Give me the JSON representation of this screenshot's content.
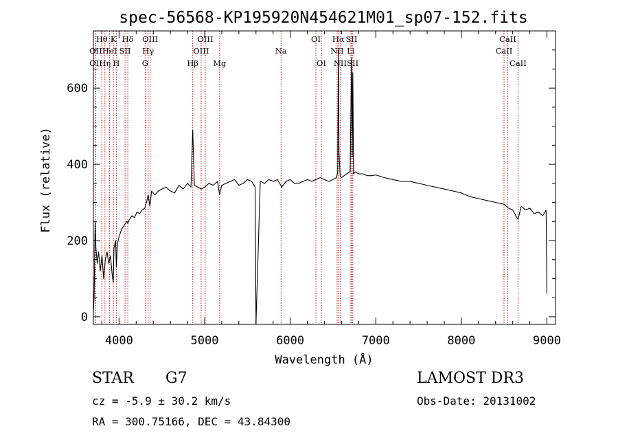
{
  "chart_data": {
    "type": "line",
    "title": "spec-56568-KP195920N454621M01_sp07-152.fits",
    "xlabel": "Wavelength (Å)",
    "ylabel": "Flux (relative)",
    "xlim": [
      3700,
      9100
    ],
    "ylim": [
      -20,
      750
    ],
    "xticks": [
      4000,
      5000,
      6000,
      7000,
      8000,
      9000
    ],
    "yticks": [
      0,
      200,
      400,
      600
    ],
    "series": [
      {
        "name": "spectrum",
        "x": [
          3700,
          3710,
          3720,
          3730,
          3745,
          3760,
          3780,
          3800,
          3820,
          3840,
          3860,
          3880,
          3900,
          3920,
          3933,
          3940,
          3960,
          3968,
          3980,
          4000,
          4030,
          4060,
          4090,
          4102,
          4120,
          4150,
          4180,
          4210,
          4240,
          4270,
          4300,
          4320,
          4340,
          4360,
          4380,
          4420,
          4460,
          4500,
          4550,
          4600,
          4650,
          4700,
          4750,
          4800,
          4840,
          4861,
          4880,
          4920,
          4960,
          5000,
          5050,
          5100,
          5150,
          5175,
          5200,
          5250,
          5300,
          5350,
          5400,
          5450,
          5500,
          5550,
          5590,
          5600,
          5650,
          5700,
          5750,
          5800,
          5850,
          5890,
          5900,
          5950,
          6000,
          6050,
          6100,
          6150,
          6200,
          6250,
          6300,
          6350,
          6400,
          6450,
          6500,
          6540,
          6555,
          6563,
          6570,
          6584,
          6600,
          6630,
          6660,
          6690,
          6700,
          6717,
          6725,
          6731,
          6740,
          6760,
          6800,
          6850,
          6900,
          6950,
          7000,
          7100,
          7200,
          7300,
          7400,
          7500,
          7600,
          7700,
          7800,
          7900,
          8000,
          8100,
          8200,
          8300,
          8400,
          8500,
          8550,
          8600,
          8662,
          8700,
          8750,
          8800,
          8850,
          8900,
          8950,
          8990,
          9000
        ],
        "y": [
          10,
          60,
          250,
          180,
          140,
          170,
          120,
          160,
          100,
          150,
          170,
          140,
          160,
          110,
          90,
          180,
          200,
          130,
          190,
          210,
          230,
          240,
          250,
          245,
          255,
          265,
          260,
          275,
          270,
          280,
          285,
          300,
          320,
          290,
          330,
          320,
          330,
          335,
          340,
          330,
          325,
          345,
          335,
          350,
          340,
          490,
          345,
          340,
          335,
          340,
          350,
          345,
          355,
          320,
          345,
          350,
          355,
          360,
          345,
          350,
          360,
          355,
          340,
          -20,
          355,
          350,
          360,
          355,
          360,
          345,
          340,
          355,
          360,
          350,
          350,
          355,
          360,
          355,
          360,
          365,
          360,
          355,
          360,
          365,
          380,
          700,
          430,
          370,
          365,
          370,
          375,
          380,
          380,
          680,
          420,
          640,
          375,
          380,
          375,
          375,
          370,
          370,
          372,
          365,
          360,
          355,
          355,
          350,
          345,
          340,
          335,
          330,
          325,
          315,
          310,
          305,
          300,
          295,
          285,
          280,
          255,
          290,
          280,
          285,
          270,
          275,
          265,
          280,
          60
        ]
      }
    ],
    "line_markers": [
      {
        "label": "OII",
        "x": 3727,
        "row": 2
      },
      {
        "label": "Hθ",
        "x": 3798,
        "row": 1
      },
      {
        "label": "OII",
        "x": 3727,
        "row": 3
      },
      {
        "label": "Hη",
        "x": 3835,
        "row": 3
      },
      {
        "label": "HeI",
        "x": 3889,
        "row": 2
      },
      {
        "label": "K",
        "x": 3934,
        "row": 1
      },
      {
        "label": "H",
        "x": 3968,
        "row": 3
      },
      {
        "label": "SII",
        "x": 4070,
        "row": 2
      },
      {
        "label": "Hδ",
        "x": 4102,
        "row": 1
      },
      {
        "label": "OIII",
        "x": 4363,
        "row": 1
      },
      {
        "label": "Hγ",
        "x": 4340,
        "row": 2
      },
      {
        "label": "G",
        "x": 4305,
        "row": 3
      },
      {
        "label": "Hβ",
        "x": 4861,
        "row": 3
      },
      {
        "label": "OIII",
        "x": 5007,
        "row": 1
      },
      {
        "label": "OIII",
        "x": 4959,
        "row": 2
      },
      {
        "label": "Mg",
        "x": 5175,
        "row": 3
      },
      {
        "label": "Na",
        "x": 5893,
        "row": 2
      },
      {
        "label": "OI",
        "x": 6300,
        "row": 1
      },
      {
        "label": "OI",
        "x": 6364,
        "row": 3
      },
      {
        "label": "Hα",
        "x": 6563,
        "row": 1
      },
      {
        "label": "NII",
        "x": 6548,
        "row": 2
      },
      {
        "label": "NII",
        "x": 6584,
        "row": 3
      },
      {
        "label": "SII",
        "x": 6717,
        "row": 1
      },
      {
        "label": "Li",
        "x": 6708,
        "row": 2
      },
      {
        "label": "SII",
        "x": 6731,
        "row": 3
      },
      {
        "label": "CaII",
        "x": 8542,
        "row": 1
      },
      {
        "label": "CaII",
        "x": 8498,
        "row": 2
      },
      {
        "label": "CaII",
        "x": 8662,
        "row": 3
      }
    ],
    "marker_color": "#d01010"
  },
  "info": {
    "class_label": "STAR",
    "subclass": "G7",
    "survey": "LAMOST DR3",
    "cz": "cz = -5.9 ± 30.2 km/s",
    "obs_date": "Obs-Date: 20131002",
    "coords": "RA = 300.75166, DEC =  43.84300"
  }
}
